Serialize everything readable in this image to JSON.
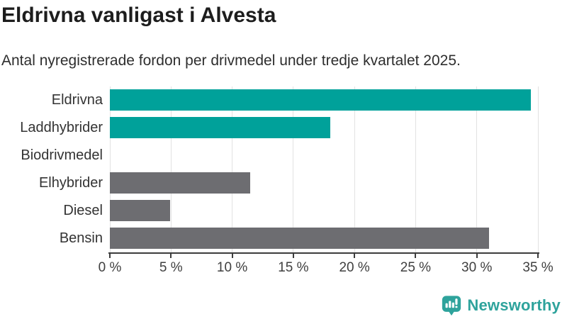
{
  "header": {
    "title": "Eldrivna vanligast i Alvesta",
    "subtitle": "Antal nyregistrerade fordon per drivmedel under tredje kvartalet 2025."
  },
  "chart_data": {
    "type": "bar",
    "orientation": "horizontal",
    "title": "Eldrivna vanligast i Alvesta",
    "subtitle": "Antal nyregistrerade fordon per drivmedel under tredje kvartalet 2025.",
    "categories": [
      "Eldrivna",
      "Laddhybrider",
      "Biodrivmedel",
      "Elhybrider",
      "Diesel",
      "Bensin"
    ],
    "values": [
      34.4,
      18.0,
      0,
      11.5,
      4.9,
      31.0
    ],
    "value_unit": "%",
    "xlabel": "",
    "ylabel": "",
    "xlim": [
      0,
      35
    ],
    "x_ticks": [
      0,
      5,
      10,
      15,
      20,
      25,
      30,
      35
    ],
    "x_tick_labels": [
      "0 %",
      "5 %",
      "10 %",
      "15 %",
      "20 %",
      "25 %",
      "30 %",
      "35 %"
    ],
    "bar_colors": [
      "#00a19a",
      "#00a19a",
      "#6d6d71",
      "#6d6d71",
      "#6d6d71",
      "#6d6d71"
    ],
    "grid": true,
    "legend": false
  },
  "colors": {
    "accent_teal": "#00a19a",
    "neutral_gray": "#6d6d71",
    "logo_teal": "#2ea39c",
    "grid_line": "#e2e2e2",
    "axis_line": "#3d3d3d"
  },
  "footer": {
    "brand": "Newsworthy"
  }
}
